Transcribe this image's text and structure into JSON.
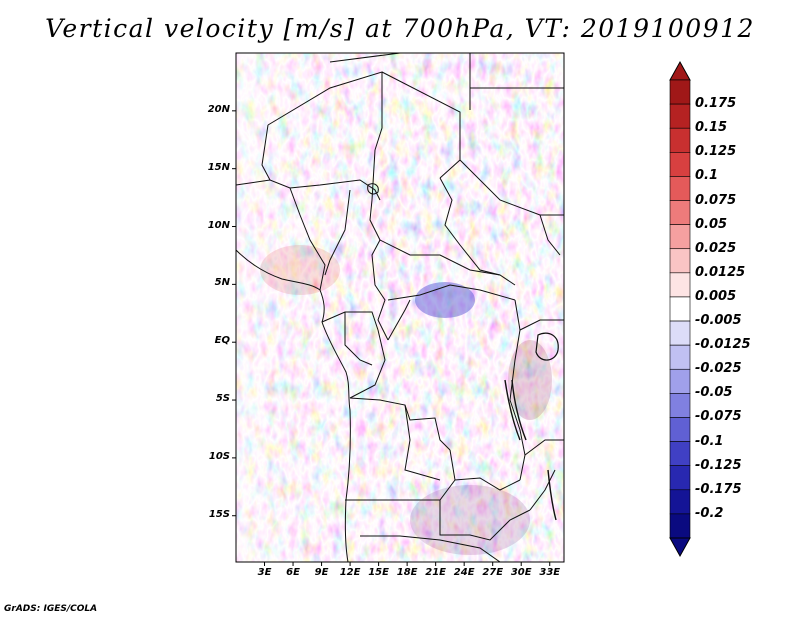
{
  "title": "Vertical velocity [m/s] at 700hPa, VT: 2019100912",
  "credit": "GrADS: IGES/COLA",
  "map": {
    "region": "Central Africa",
    "lat_range": [
      -19,
      25
    ],
    "lon_range": [
      0,
      34.5
    ],
    "lat_ticks": [
      "20N",
      "15N",
      "10N",
      "5N",
      "EQ",
      "5S",
      "10S",
      "15S"
    ],
    "lat_values": [
      20,
      15,
      10,
      5,
      0,
      -5,
      -10,
      -15
    ],
    "lon_ticks": [
      "3E",
      "6E",
      "9E",
      "12E",
      "15E",
      "18E",
      "21E",
      "24E",
      "27E",
      "30E",
      "33E"
    ],
    "lon_values": [
      3,
      6,
      9,
      12,
      15,
      18,
      21,
      24,
      27,
      30,
      33
    ]
  },
  "colorbar": {
    "labels": [
      "0.175",
      "0.15",
      "0.125",
      "0.1",
      "0.075",
      "0.05",
      "0.025",
      "0.0125",
      "0.005",
      "-0.005",
      "-0.0125",
      "-0.025",
      "-0.05",
      "-0.075",
      "-0.1",
      "-0.125",
      "-0.175",
      "-0.2"
    ],
    "colors": [
      "#a01818",
      "#b52222",
      "#c83030",
      "#d84040",
      "#e45a5a",
      "#ee7b7b",
      "#f5a0a0",
      "#fac4c4",
      "#fde4e4",
      "#ffffff",
      "#dcdcf8",
      "#c0c0f2",
      "#a0a0ea",
      "#8080e0",
      "#6060d4",
      "#4040c4",
      "#2828b0",
      "#141496",
      "#0a0a80"
    ]
  }
}
